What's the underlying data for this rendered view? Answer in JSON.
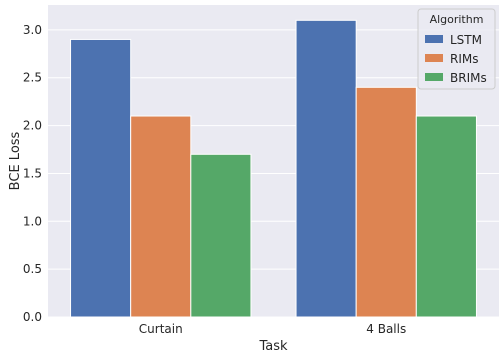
{
  "chart_data": {
    "type": "bar",
    "categories": [
      "Curtain",
      "4 Balls"
    ],
    "series": [
      {
        "name": "LSTM",
        "values": [
          2.9,
          3.1
        ],
        "color": "#4c72b0"
      },
      {
        "name": "RIMs",
        "values": [
          2.1,
          2.4
        ],
        "color": "#dd8452"
      },
      {
        "name": "BRIMs",
        "values": [
          1.7,
          2.1
        ],
        "color": "#55a868"
      }
    ],
    "xlabel": "Task",
    "ylabel": "BCE Loss",
    "ylim": [
      0,
      3.26
    ],
    "yticks": [
      0.0,
      0.5,
      1.0,
      1.5,
      2.0,
      2.5,
      3.0
    ],
    "ytick_labels": [
      "0.0",
      "0.5",
      "1.0",
      "1.5",
      "2.0",
      "2.5",
      "3.0"
    ],
    "grid": true,
    "background": "#eaeaf2",
    "legend": {
      "title": "Algorithm",
      "placement": "upper right"
    }
  }
}
